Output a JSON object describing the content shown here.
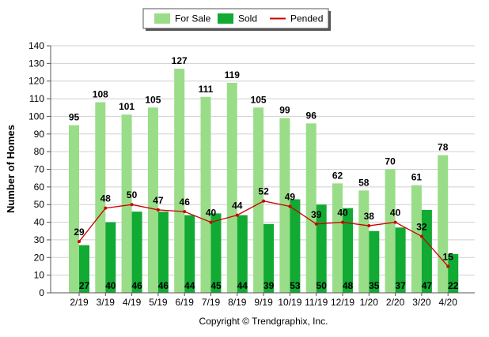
{
  "chart_data": {
    "type": "bar",
    "categories": [
      "2/19",
      "3/19",
      "4/19",
      "5/19",
      "6/19",
      "7/19",
      "8/19",
      "9/19",
      "10/19",
      "11/19",
      "12/19",
      "1/20",
      "2/20",
      "3/20",
      "4/20"
    ],
    "series": [
      {
        "name": "For Sale",
        "kind": "bar",
        "color": "#99dd88",
        "values": [
          95,
          108,
          101,
          105,
          127,
          111,
          119,
          105,
          99,
          96,
          62,
          58,
          70,
          61,
          78
        ]
      },
      {
        "name": "Sold",
        "kind": "bar",
        "color": "#11aa33",
        "values": [
          27,
          40,
          46,
          46,
          44,
          45,
          44,
          39,
          53,
          50,
          48,
          35,
          37,
          47,
          22
        ]
      },
      {
        "name": "Pended",
        "kind": "line",
        "color": "#cc0000",
        "values": [
          29,
          48,
          50,
          47,
          46,
          40,
          44,
          52,
          49,
          39,
          40,
          38,
          40,
          32,
          15
        ]
      }
    ],
    "ylabel": "Number of Homes",
    "ylim": [
      0,
      140
    ],
    "ytick_step": 10,
    "grid": true,
    "legend_position": "top-center",
    "footer": "Copyright © Trendgraphix, Inc."
  }
}
